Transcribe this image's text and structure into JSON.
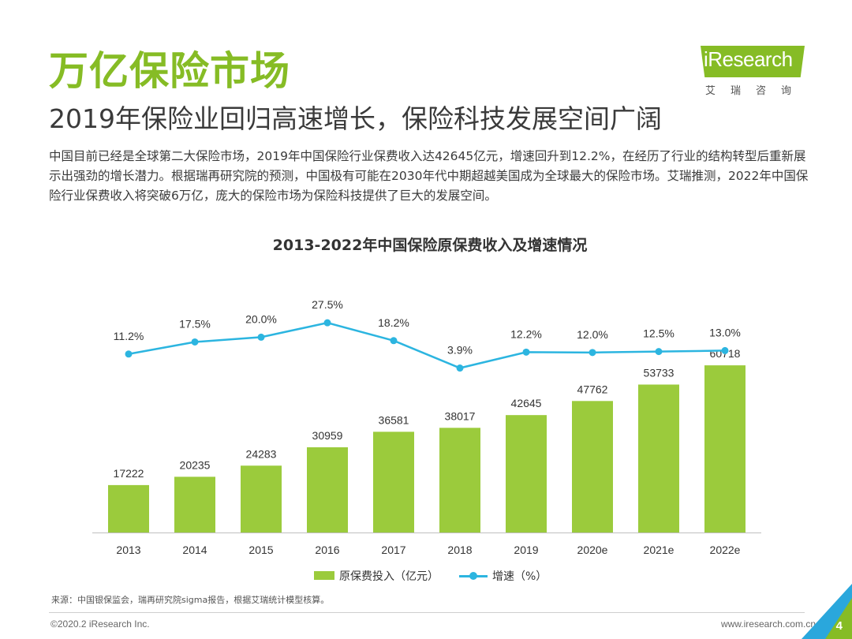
{
  "header": {
    "title": "万亿保险市场",
    "subtitle": "2019年保险业回归高速增长，保险科技发展空间广阔",
    "intro": "中国目前已经是全球第二大保险市场，2019年中国保险行业保费收入达42645亿元，增速回升到12.2%，在经历了行业的结构转型后重新展示出强劲的增长潜力。根据瑞再研究院的预测，中国极有可能在2030年代中期超越美国成为全球最大的保险市场。艾瑞推测，2022年中国保险行业保费收入将突破6万亿，庞大的保险市场为保险科技提供了巨大的发展空间。"
  },
  "logo": {
    "name": "iResearch",
    "cn": "艾瑞咨询",
    "color": "#86bc25"
  },
  "chart_data": {
    "type": "bar",
    "title": "2013-2022年中国保险原保费收入及增速情况",
    "categories": [
      "2013",
      "2014",
      "2015",
      "2016",
      "2017",
      "2018",
      "2019",
      "2020e",
      "2021e",
      "2022e"
    ],
    "series": [
      {
        "name": "原保费投入（亿元）",
        "kind": "bar",
        "color": "#9bcb3c",
        "values": [
          17222,
          20235,
          24283,
          30959,
          36581,
          38017,
          42645,
          47762,
          53733,
          60718
        ]
      },
      {
        "name": "增速（%）",
        "kind": "line",
        "color": "#2cb5e0",
        "values": [
          11.2,
          17.5,
          20.0,
          27.5,
          18.2,
          3.9,
          12.2,
          12.0,
          12.5,
          13.0
        ],
        "labels": [
          "11.2%",
          "17.5%",
          "20.0%",
          "27.5%",
          "18.2%",
          "3.9%",
          "12.2%",
          "12.0%",
          "12.5%",
          "13.0%"
        ]
      }
    ],
    "legend_position": "bottom",
    "grid": false
  },
  "footer": {
    "source": "来源：中国银保监会，瑞再研究院sigma报告，根据艾瑞统计模型核算。",
    "copyright": "©2020.2 iResearch Inc.",
    "website": "www.iresearch.com.cn",
    "page_number": "4"
  },
  "colors": {
    "accent_green": "#86bc25",
    "bar_green": "#9bcb3c",
    "line_blue": "#2cb5e0"
  }
}
